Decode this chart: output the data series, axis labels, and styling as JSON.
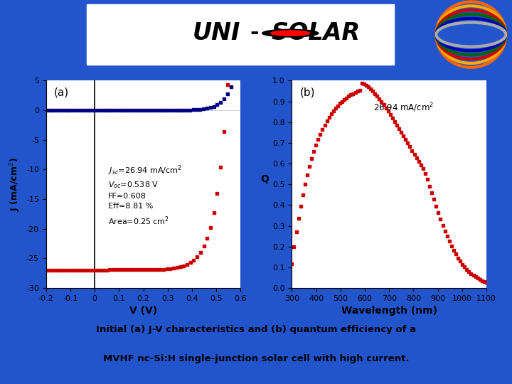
{
  "background_color": "#2255cc",
  "plot_bg": "white",
  "subtitle_line1": "Initial (a) J-V characteristics and (b) quantum efficiency of a",
  "subtitle_line2": "MVHF nc-Si:H single-junction solar cell with high current.",
  "panel_a_label": "(a)",
  "panel_b_label": "(b)",
  "jv_xlabel": "V (V)",
  "jv_ylabel": "J (mA/cm$^2$)",
  "qe_xlabel": "Wavelength (nm)",
  "qe_ylabel": "Q",
  "jv_xlim": [
    -0.2,
    0.6
  ],
  "jv_ylim": [
    -30,
    5
  ],
  "jv_xticks": [
    -0.2,
    -0.1,
    0.0,
    0.1,
    0.2,
    0.3,
    0.4,
    0.5,
    0.6
  ],
  "jv_yticks": [
    -30,
    -25,
    -20,
    -15,
    -10,
    -5,
    0,
    5
  ],
  "qe_xlim": [
    300,
    1100
  ],
  "qe_ylim": [
    0.0,
    1.0
  ],
  "qe_xticks": [
    300,
    400,
    500,
    600,
    700,
    800,
    900,
    1000,
    1100
  ],
  "qe_yticks": [
    0.0,
    0.1,
    0.2,
    0.3,
    0.4,
    0.5,
    0.6,
    0.7,
    0.8,
    0.9,
    1.0
  ],
  "dark_color": "#000080",
  "light_color": "#cc0000",
  "marker_size": 3.5,
  "Jsc": 26.94,
  "Voc": 0.538,
  "FF": 0.608,
  "Eff": 8.81,
  "Area": 0.25
}
